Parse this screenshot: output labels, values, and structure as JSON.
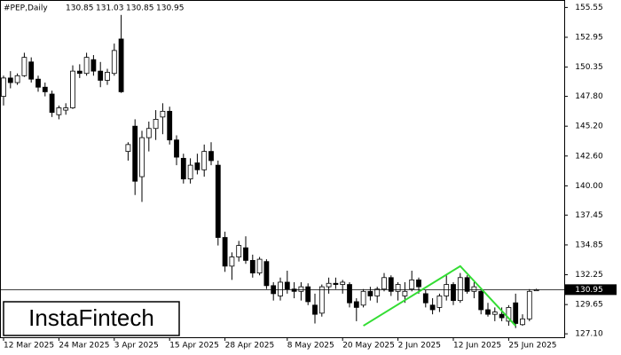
{
  "chart_data": {
    "type": "candlestick",
    "symbol": "#PEP,Daily",
    "categories": [
      "12 Mar 2025",
      null,
      null,
      null,
      null,
      null,
      null,
      null,
      "24 Mar 2025",
      null,
      null,
      null,
      null,
      null,
      null,
      null,
      "3 Apr 2025",
      null,
      null,
      null,
      null,
      null,
      null,
      null,
      "15 Apr 2025",
      null,
      null,
      null,
      null,
      null,
      null,
      null,
      "28 Apr 2025",
      null,
      null,
      null,
      null,
      null,
      null,
      null,
      null,
      "8 May 2025",
      null,
      null,
      null,
      null,
      null,
      null,
      null,
      "20 May 2025",
      null,
      null,
      null,
      null,
      null,
      null,
      null,
      "2 Jun 2025",
      null,
      null,
      null,
      null,
      null,
      null,
      null,
      "12 Jun 2025",
      null,
      null,
      null,
      null,
      null,
      null,
      null,
      "25 Jun 2025",
      null,
      null,
      null,
      null
    ],
    "open": [
      147.8,
      149.4,
      149.0,
      149.6,
      150.8,
      149.3,
      148.6,
      148.0,
      146.2,
      146.6,
      146.8,
      150.0,
      149.8,
      151.0,
      150.0,
      149.2,
      149.8,
      152.8,
      143.0,
      145.2,
      140.8,
      144.2,
      145.0,
      146.0,
      146.5,
      144.0,
      142.4,
      140.6,
      142.0,
      141.4,
      143.0,
      141.8,
      135.5,
      133.0,
      133.8,
      134.6,
      133.5,
      132.4,
      133.4,
      131.3,
      130.4,
      131.6,
      131.0,
      130.8,
      131.2,
      129.6,
      128.9,
      131.2,
      131.5,
      131.4,
      131.4,
      129.9,
      129.6,
      130.8,
      130.4,
      131.0,
      132.0,
      130.8,
      130.4,
      131.0,
      131.8,
      130.6,
      129.6,
      129.4,
      130.4,
      131.4,
      130.0,
      132.0,
      130.8,
      130.8,
      129.2,
      128.8,
      128.8,
      128.2,
      129.8,
      127.9,
      128.4,
      130.85
    ],
    "high": [
      149.6,
      150.0,
      149.8,
      151.6,
      151.2,
      149.6,
      149.0,
      148.3,
      147.0,
      147.2,
      150.5,
      150.6,
      151.6,
      151.4,
      150.8,
      150.2,
      152.4,
      154.9,
      143.8,
      145.8,
      144.8,
      145.6,
      146.6,
      147.2,
      146.9,
      144.4,
      142.8,
      142.4,
      142.8,
      143.6,
      143.8,
      142.2,
      136.0,
      134.2,
      135.2,
      135.6,
      134.0,
      133.8,
      133.6,
      131.6,
      132.0,
      132.6,
      131.6,
      131.6,
      131.5,
      130.6,
      131.4,
      132.0,
      132.0,
      131.8,
      131.6,
      130.2,
      131.0,
      131.2,
      131.2,
      132.4,
      132.2,
      131.6,
      131.6,
      132.6,
      132.0,
      130.9,
      130.2,
      130.6,
      132.2,
      131.6,
      132.4,
      132.2,
      131.6,
      131.0,
      129.8,
      129.4,
      129.4,
      129.6,
      130.6,
      128.8,
      131.0,
      131.03
    ],
    "low": [
      147.0,
      148.5,
      148.8,
      149.5,
      149.0,
      148.2,
      147.8,
      146.0,
      145.8,
      146.2,
      146.7,
      149.4,
      149.6,
      149.6,
      148.6,
      148.8,
      149.6,
      148.1,
      142.2,
      139.2,
      138.6,
      143.0,
      144.0,
      144.5,
      143.6,
      141.8,
      140.2,
      140.2,
      141.0,
      140.8,
      141.8,
      134.8,
      132.5,
      131.8,
      133.4,
      133.2,
      132.0,
      132.2,
      131.0,
      130.0,
      130.0,
      130.6,
      130.2,
      130.0,
      129.6,
      128.0,
      128.6,
      130.6,
      131.0,
      130.6,
      129.4,
      128.2,
      129.4,
      130.0,
      129.8,
      130.8,
      130.4,
      130.0,
      129.8,
      130.8,
      130.6,
      129.4,
      128.8,
      129.0,
      130.0,
      129.6,
      129.8,
      130.6,
      130.2,
      128.8,
      128.6,
      128.2,
      128.2,
      127.8,
      127.6,
      127.8,
      128.2,
      130.85
    ],
    "close": [
      149.4,
      149.0,
      149.6,
      151.2,
      149.3,
      148.6,
      148.2,
      146.4,
      146.8,
      146.8,
      150.0,
      149.8,
      151.2,
      150.0,
      149.2,
      149.9,
      151.8,
      148.2,
      143.6,
      140.4,
      144.2,
      145.0,
      145.8,
      146.5,
      144.0,
      142.5,
      140.6,
      141.8,
      141.4,
      143.0,
      142.2,
      135.5,
      133.0,
      133.8,
      134.8,
      133.5,
      132.4,
      133.6,
      131.3,
      130.6,
      131.6,
      131.0,
      130.8,
      131.2,
      129.9,
      128.8,
      131.2,
      131.5,
      131.4,
      131.6,
      129.8,
      129.4,
      130.8,
      130.4,
      131.0,
      132.0,
      130.8,
      131.4,
      130.8,
      131.8,
      131.2,
      129.8,
      129.2,
      130.4,
      131.4,
      130.0,
      132.0,
      130.8,
      131.2,
      129.2,
      128.8,
      129.0,
      128.5,
      129.4,
      128.0,
      128.4,
      130.8,
      130.95
    ],
    "pattern": {
      "color": "#33dd33",
      "x": [
        52,
        66,
        74
      ],
      "y": [
        127.8,
        133.0,
        127.8
      ]
    },
    "ylim": [
      126.8,
      156.2
    ],
    "yticks": [
      {
        "value": 127.1,
        "label": "127.10"
      },
      {
        "value": 129.65,
        "label": "129.65"
      },
      {
        "value": 132.25,
        "label": "132.25"
      },
      {
        "value": 134.85,
        "label": "134.85"
      },
      {
        "value": 137.45,
        "label": "137.45"
      },
      {
        "value": 140.0,
        "label": "140.00"
      },
      {
        "value": 142.6,
        "label": "142.60"
      },
      {
        "value": 145.2,
        "label": "145.20"
      },
      {
        "value": 147.8,
        "label": "147.80"
      },
      {
        "value": 150.35,
        "label": "150.35"
      },
      {
        "value": 152.95,
        "label": "152.95"
      },
      {
        "value": 155.55,
        "label": "155.55"
      }
    ],
    "logo": "InstaFintech"
  }
}
